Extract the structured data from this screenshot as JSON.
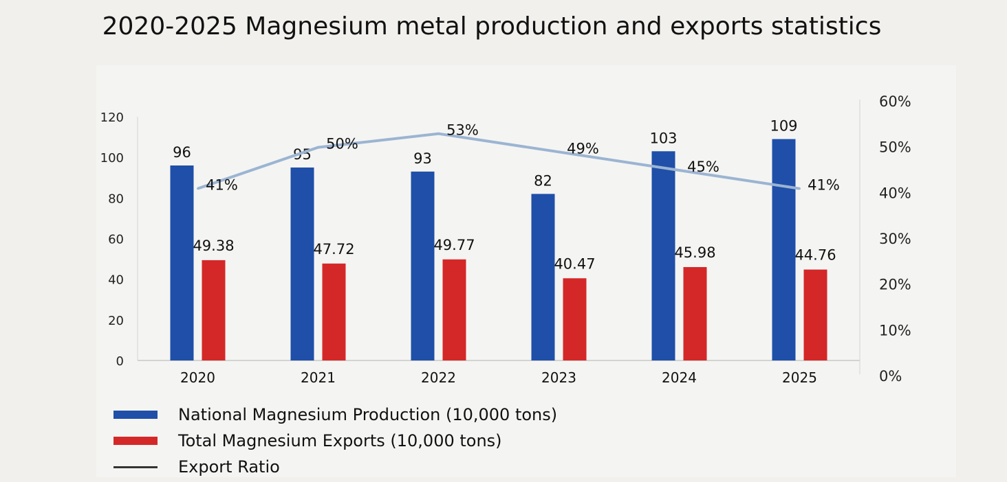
{
  "title": "2020-2025 Magnesium metal production and exports statistics",
  "colors": {
    "production": "#1f4fa8",
    "exports": "#d42828",
    "ratio_line": "#9bb4d2"
  },
  "chart_data": {
    "type": "bar",
    "categories": [
      "2020",
      "2021",
      "2022",
      "2023",
      "2024",
      "2025"
    ],
    "series": [
      {
        "name": "National Magnesium Production (10,000 tons)",
        "values": [
          96,
          95,
          93,
          82,
          103,
          109
        ],
        "labels": [
          "96",
          "95",
          "93",
          "82",
          "103",
          "109"
        ]
      },
      {
        "name": "Total Magnesium Exports (10,000 tons)",
        "values": [
          49.38,
          47.72,
          49.77,
          40.47,
          45.98,
          44.76
        ],
        "labels": [
          "49.38",
          "47.72",
          "49.77",
          "40.47",
          "45.98",
          "44.76"
        ]
      },
      {
        "name": "Export Ratio",
        "type": "line",
        "axis": "right",
        "values": [
          41,
          50,
          53,
          49,
          45,
          41
        ],
        "labels": [
          "41%",
          "50%",
          "53%",
          "49%",
          "45%",
          "41%"
        ]
      }
    ],
    "y_left": {
      "min": 0,
      "max": 120,
      "ticks": [
        "0",
        "20",
        "40",
        "60",
        "80",
        "100",
        "120"
      ]
    },
    "y_right": {
      "min": 0,
      "max": 60,
      "ticks": [
        "0%",
        "10%",
        "20%",
        "30%",
        "40%",
        "50%",
        "60%"
      ]
    },
    "grid": false,
    "legend_position": "bottom-left"
  }
}
